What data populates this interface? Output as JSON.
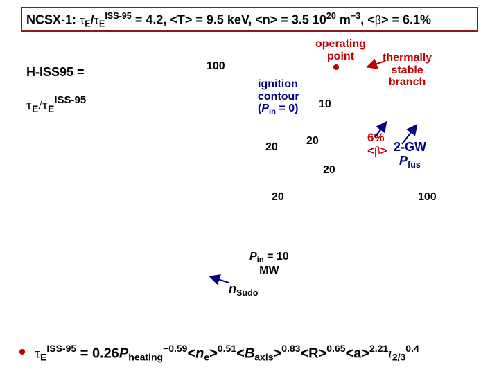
{
  "title": [
    "NCSX-1: ",
    "τ",
    "E",
    "/",
    "τ",
    "E",
    "ISS-95",
    " = 4.2,  <T> = 9.5 keV, <n> = 3.5 10",
    "20",
    " m",
    "−3",
    ", <",
    "β",
    "> = 6.1%"
  ],
  "axis_label": {
    "line1": "H-ISS95 =",
    "line2": [
      "τ",
      "E",
      "/τ",
      "E",
      "ISS-95"
    ]
  },
  "contour_labels": [
    "100",
    "10",
    "20",
    "20",
    "20",
    "20",
    "100"
  ],
  "annotations": {
    "operating_point": [
      "operating",
      "point"
    ],
    "thermally_stable": [
      "thermally",
      "stable",
      "branch"
    ],
    "ignition": [
      "ignition",
      "contour",
      "(",
      "P",
      "in",
      " = 0)"
    ],
    "beta": [
      "6%",
      "<",
      "β",
      ">"
    ],
    "fusion": [
      "2-GW",
      "P",
      "fus"
    ],
    "pin": [
      "P",
      "in",
      " = 10",
      "MW"
    ],
    "sudo": [
      "n",
      "Sudo"
    ]
  },
  "formula": [
    "τ",
    "E",
    "ISS-95",
    " = 0.26",
    "P",
    "heating",
    "−0.59",
    "<",
    "n",
    "e",
    ">",
    "0.51",
    "<",
    "B",
    "axis",
    ">",
    "0.83",
    "<R>",
    "0.65",
    "<a>",
    "2.21",
    "ι",
    "2/3",
    "0.4"
  ]
}
